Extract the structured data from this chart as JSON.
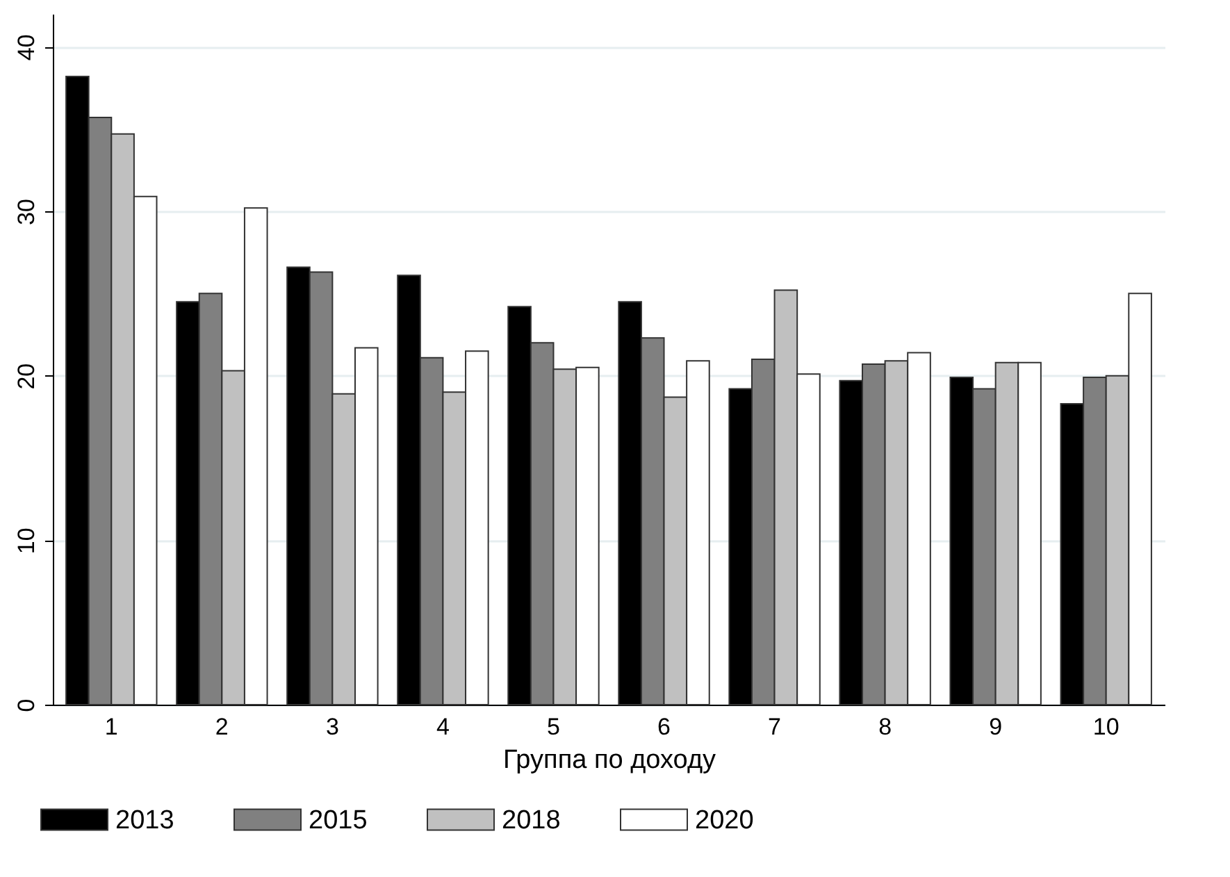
{
  "chart_data": {
    "type": "bar",
    "xlabel": "Группа по доходу",
    "categories": [
      "1",
      "2",
      "3",
      "4",
      "5",
      "6",
      "7",
      "8",
      "9",
      "10"
    ],
    "series": [
      {
        "name": "2013",
        "color": "#000000",
        "values": [
          38.2,
          24.5,
          26.6,
          26.1,
          24.2,
          24.5,
          19.2,
          19.7,
          19.9,
          18.3
        ]
      },
      {
        "name": "2015",
        "color": "#808080",
        "values": [
          35.7,
          25.0,
          26.3,
          21.1,
          22.0,
          22.3,
          21.0,
          20.7,
          19.2,
          19.9
        ]
      },
      {
        "name": "2018",
        "color": "#c0c0c0",
        "values": [
          34.7,
          20.3,
          18.9,
          19.0,
          20.4,
          18.7,
          25.2,
          20.9,
          20.8,
          20.0
        ]
      },
      {
        "name": "2020",
        "color": "#ffffff",
        "values": [
          30.9,
          30.2,
          21.7,
          21.5,
          20.5,
          20.9,
          20.1,
          21.4,
          20.8,
          25.0
        ]
      }
    ],
    "ylim": [
      0,
      42
    ],
    "yticks": [
      0,
      10,
      20,
      30,
      40
    ],
    "grid": "y",
    "legend": "bottom"
  }
}
